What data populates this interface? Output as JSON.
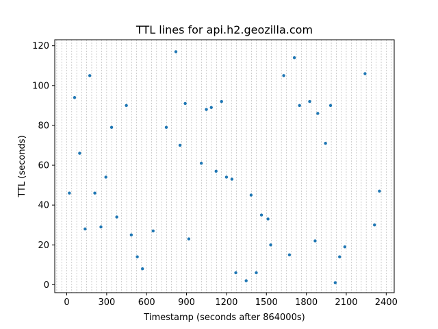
{
  "chart_data": {
    "type": "scatter",
    "title": "TTL lines for api.h2.geozilla.com",
    "xlabel": "Timestamp (seconds after 864000s)",
    "ylabel": "TTL (seconds)",
    "xlim": [
      -90,
      2460
    ],
    "ylim": [
      -4,
      123
    ],
    "xticks": [
      0,
      300,
      600,
      900,
      1200,
      1500,
      1800,
      2100,
      2400
    ],
    "yticks": [
      0,
      20,
      40,
      60,
      80,
      100,
      120
    ],
    "vertical_gridlines_every": 37.5,
    "grid": "vertical dashed",
    "color": "#1f77b4",
    "series": [
      {
        "points": [
          [
            20,
            46
          ],
          [
            59,
            94
          ],
          [
            97,
            66
          ],
          [
            138,
            28
          ],
          [
            173,
            105
          ],
          [
            211,
            46
          ],
          [
            257,
            29
          ],
          [
            294,
            54
          ],
          [
            337,
            79
          ],
          [
            376,
            34
          ],
          [
            448,
            90
          ],
          [
            485,
            25
          ],
          [
            530,
            14
          ],
          [
            569,
            8
          ],
          [
            649,
            27
          ],
          [
            748,
            79
          ],
          [
            820,
            117
          ],
          [
            851,
            70
          ],
          [
            890,
            91
          ],
          [
            917,
            23
          ],
          [
            1011,
            61
          ],
          [
            1049,
            88
          ],
          [
            1086,
            89
          ],
          [
            1122,
            57
          ],
          [
            1163,
            92
          ],
          [
            1200,
            54
          ],
          [
            1241,
            53
          ],
          [
            1270,
            6
          ],
          [
            1348,
            2
          ],
          [
            1385,
            45
          ],
          [
            1424,
            6
          ],
          [
            1463,
            35
          ],
          [
            1512,
            33
          ],
          [
            1532,
            20
          ],
          [
            1630,
            105
          ],
          [
            1673,
            15
          ],
          [
            1710,
            114
          ],
          [
            1749,
            90
          ],
          [
            1825,
            92
          ],
          [
            1866,
            22
          ],
          [
            1886,
            86
          ],
          [
            1944,
            71
          ],
          [
            1982,
            90
          ],
          [
            2017,
            1
          ],
          [
            2050,
            14
          ],
          [
            2089,
            19
          ],
          [
            2241,
            106
          ],
          [
            2312,
            30
          ],
          [
            2349,
            47
          ]
        ]
      }
    ]
  }
}
